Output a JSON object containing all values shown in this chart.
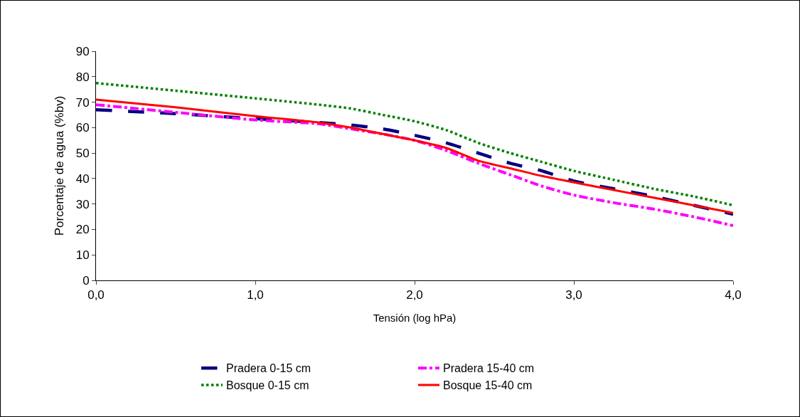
{
  "chart_data": {
    "type": "line",
    "xlabel": "Tensión (log hPa)",
    "ylabel": "Porcentaje de agua (%bv)",
    "xlim": [
      0,
      4
    ],
    "xticks": [
      {
        "value": 0,
        "label": "0,0"
      },
      {
        "value": 1,
        "label": "1,0"
      },
      {
        "value": 2,
        "label": "2,0"
      },
      {
        "value": 3,
        "label": "3,0"
      },
      {
        "value": 4,
        "label": "4,0"
      }
    ],
    "ylim": [
      0,
      90
    ],
    "yticks": [
      0,
      10,
      20,
      30,
      40,
      50,
      60,
      70,
      80,
      90
    ],
    "grid": false,
    "legend": "bottom",
    "marker": "none",
    "x": [
      0,
      0.5,
      1.0,
      1.4,
      1.6,
      1.8,
      2.0,
      2.2,
      2.4,
      2.6,
      2.8,
      3.0,
      3.25,
      3.5,
      3.75,
      4.0
    ],
    "series": [
      {
        "name": "Pradera 0-15 cm",
        "color": "#000080",
        "line_style": "longdash",
        "values": [
          67,
          65.5,
          63.5,
          62,
          61,
          59.5,
          57,
          54,
          50,
          46,
          43,
          39,
          36,
          33,
          29.5,
          26
        ]
      },
      {
        "name": "Pradera 15-40 cm",
        "color": "#ff00ff",
        "line_style": "dashdot",
        "values": [
          69,
          66,
          63,
          61.5,
          59.5,
          57.5,
          55,
          51,
          46,
          41.5,
          37,
          33.5,
          30.5,
          28,
          25,
          21.5
        ]
      },
      {
        "name": "Bosque 0-15 cm",
        "color": "#008000",
        "line_style": "dotted",
        "values": [
          77.5,
          74.5,
          71.5,
          69,
          67.5,
          65,
          62.5,
          59,
          54,
          50,
          46.5,
          43,
          39.5,
          36,
          33,
          29.5
        ]
      },
      {
        "name": "Bosque 15-40 cm",
        "color": "#ff0000",
        "line_style": "solid",
        "values": [
          71,
          68,
          64.5,
          62,
          60,
          57.5,
          55,
          52,
          47,
          44,
          41,
          38.5,
          35.5,
          32.5,
          29.5,
          26.5
        ]
      }
    ]
  }
}
